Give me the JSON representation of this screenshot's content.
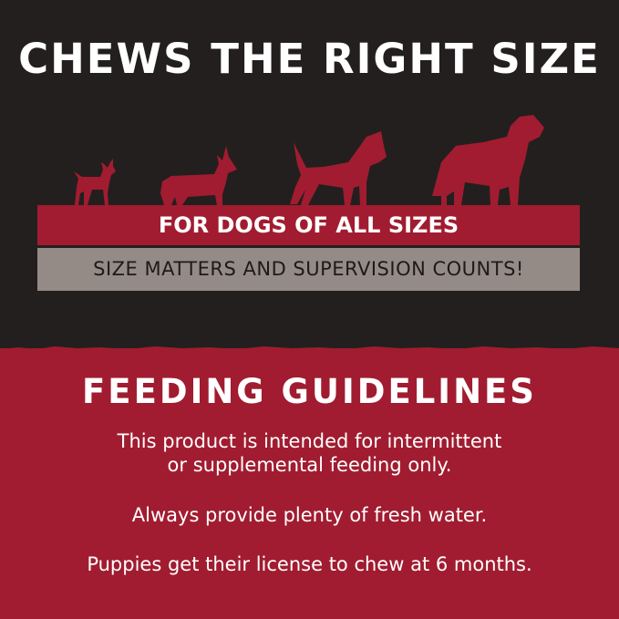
{
  "header": {
    "title": "CHEWS THE RIGHT SIZE"
  },
  "size_banner": {
    "primary": "FOR DOGS OF ALL SIZES",
    "secondary": "SIZE MATTERS AND SUPERVISION COUNTS!"
  },
  "feeding": {
    "title": "FEEDING GUIDELINES",
    "lines": [
      "This product is intended for intermittent",
      "or supplemental feeding only.",
      "Always provide plenty of fresh water.",
      "Puppies get their license to chew at 6 months."
    ]
  },
  "colors": {
    "dark": "#231f1e",
    "red": "#a11c30",
    "gray": "#958b86",
    "text": "#ffffff"
  },
  "icons": [
    "small-dog-icon",
    "corgi-icon",
    "medium-dog-icon",
    "large-dog-icon"
  ]
}
